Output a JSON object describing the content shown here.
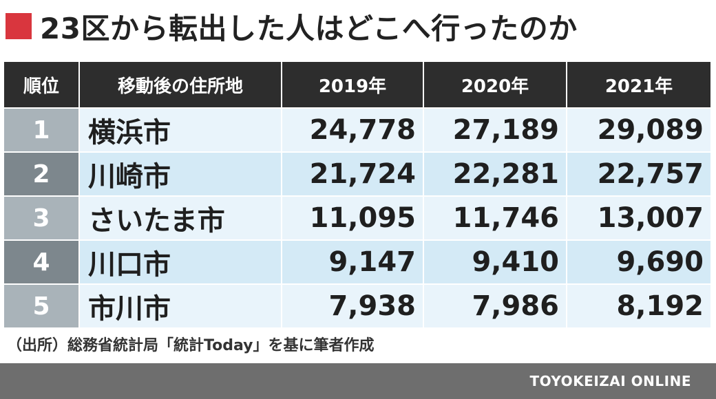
{
  "title": "23区から転出した人はどこへ行ったのか",
  "colors": {
    "title_mark": "#d9363e",
    "header_bg": "#2d2d2d",
    "row_light": "#e9f4fb",
    "row_dark": "#d4eaf6",
    "rank_light": "#a9b3b9",
    "rank_dark": "#7d878d",
    "footer_bg": "#6e6e6e"
  },
  "chart_data": {
    "type": "table",
    "title": "23区から転出した人はどこへ行ったのか",
    "columns": [
      "順位",
      "移動後の住所地",
      "2019年",
      "2020年",
      "2021年"
    ],
    "rows": [
      {
        "rank": "1",
        "city": "横浜市",
        "values": [
          "24,778",
          "27,189",
          "29,089"
        ]
      },
      {
        "rank": "2",
        "city": "川崎市",
        "values": [
          "21,724",
          "22,281",
          "22,757"
        ]
      },
      {
        "rank": "3",
        "city": "さいたま市",
        "values": [
          "11,095",
          "11,746",
          "13,007"
        ]
      },
      {
        "rank": "4",
        "city": "川口市",
        "values": [
          "9,147",
          "9,410",
          "9,690"
        ]
      },
      {
        "rank": "5",
        "city": "市川市",
        "values": [
          "7,938",
          "7,986",
          "8,192"
        ]
      }
    ]
  },
  "source": "（出所）総務省統計局「統計Today」を基に筆者作成",
  "footer": {
    "brand": "TOYOKEIZAI ONLINE"
  }
}
